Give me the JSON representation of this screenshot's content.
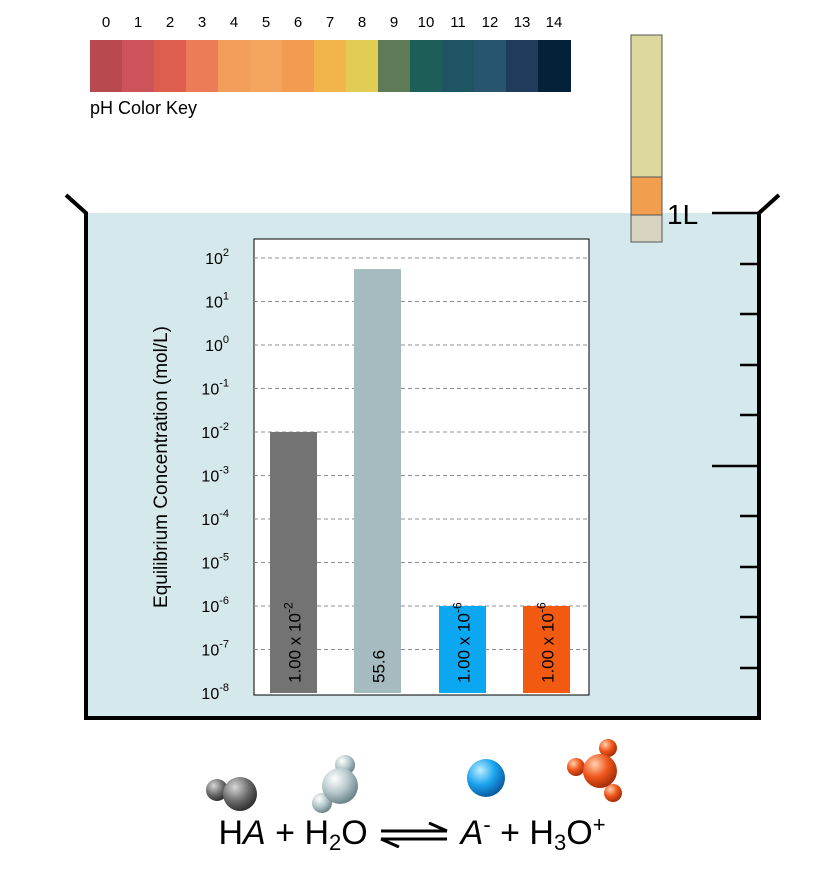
{
  "key": {
    "label": "pH Color Key",
    "levels": [
      "0",
      "1",
      "2",
      "3",
      "4",
      "5",
      "6",
      "7",
      "8",
      "9",
      "10",
      "11",
      "12",
      "13",
      "14"
    ],
    "colors": [
      "#b84a4f",
      "#cc5359",
      "#dd5d4e",
      "#ec7b57",
      "#f29d5a",
      "#f4a45c",
      "#f19c50",
      "#f1b54b",
      "#e2cc55",
      "#5e7a57",
      "#1d5e58",
      "#1f5562",
      "#275570",
      "#1f3c5a",
      "#03223a"
    ]
  },
  "indicator": {
    "colors": [
      "#dcd89d",
      "#f19f4f",
      "#d9d3c2"
    ]
  },
  "beaker": {
    "volume_label": "1L",
    "fill_color": "#d5e8ec"
  },
  "chart_data": {
    "type": "bar",
    "categories": [
      "HA",
      "H2O",
      "A-",
      "H3O+"
    ],
    "values": [
      0.01,
      55.6,
      1e-06,
      1e-06
    ],
    "colors": [
      "#737373",
      "#a5bbbf",
      "#0ba7f0",
      "#f25a12"
    ],
    "bar_labels": [
      {
        "base": "1.00 x 10",
        "exp": "-2"
      },
      {
        "base": "55.6",
        "exp": ""
      },
      {
        "base": "1.00 x 10",
        "exp": "-6"
      },
      {
        "base": "1.00 x 10",
        "exp": "-6"
      }
    ],
    "ylabel": "Equilibrium Concentration (mol/L)",
    "yscale": "log",
    "ylim": [
      1e-08,
      100
    ],
    "ytick_exponents": [
      "2",
      "1",
      "0",
      "-1",
      "-2",
      "-3",
      "-4",
      "-5",
      "-6",
      "-7",
      "-8"
    ],
    "ytick_base": "10",
    "grid": true
  },
  "equation": {
    "reactant1": "H",
    "reactant1_italic": "A",
    "plus1": "+",
    "water_h": "H",
    "water_sub": "2",
    "water_o": "O",
    "product1": "A",
    "product1_sup": "-",
    "plus2": "+",
    "hydronium_h": "H",
    "hydronium_sub": "3",
    "hydronium_o": "O",
    "hydronium_sup": "+"
  }
}
